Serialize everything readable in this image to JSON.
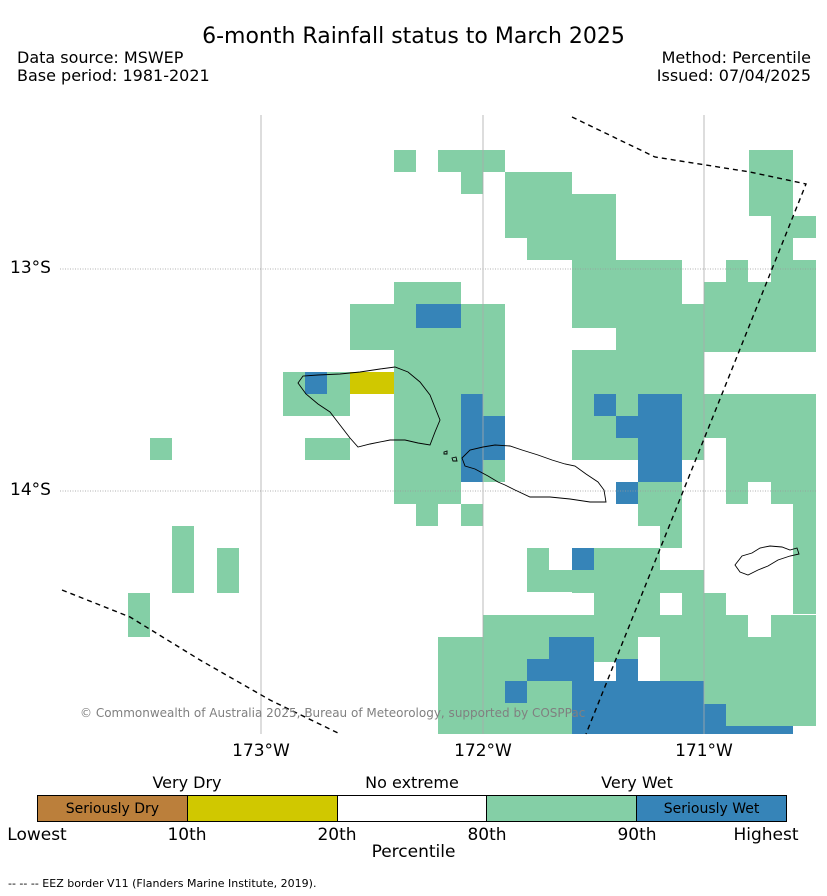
{
  "title": "6-month Rainfall status to March 2025",
  "meta_left": {
    "data_source": "Data source: MSWEP",
    "base_period": "Base period: 1981-2021"
  },
  "meta_right": {
    "method": "Method: Percentile",
    "issued": "Issued: 07/04/2025"
  },
  "map": {
    "x_ticks": [
      "173°W",
      "172°W",
      "171°W"
    ],
    "y_ticks": [
      "13°S",
      "14°S"
    ],
    "copyright": "© Commonwealth of Australia 2025, Bureau of Meteorology, supported by COSPPac",
    "colors": {
      "seriously_dry": "#bb7f3b",
      "very_dry": "#d0c800",
      "no_extreme": "#ffffff",
      "very_wet": "#84cfa6",
      "seriously_wet": "#3684b8"
    }
  },
  "legend": {
    "category_labels": [
      "Very Dry",
      "No extreme",
      "Very Wet"
    ],
    "segments": [
      {
        "label": "Seriously Dry",
        "color": "#bb7f3b"
      },
      {
        "label": "",
        "color": "#d0c800"
      },
      {
        "label": "",
        "color": "#ffffff"
      },
      {
        "label": "",
        "color": "#84cfa6"
      },
      {
        "label": "Seriously Wet",
        "color": "#3684b8"
      }
    ],
    "percentile_labels": [
      "Lowest",
      "10th",
      "20th",
      "80th",
      "90th",
      "Highest"
    ],
    "axis_label": "Percentile"
  },
  "eez_note": "--  --  -- EEZ border V11 (Flanders Marine Institute, 2019)."
}
